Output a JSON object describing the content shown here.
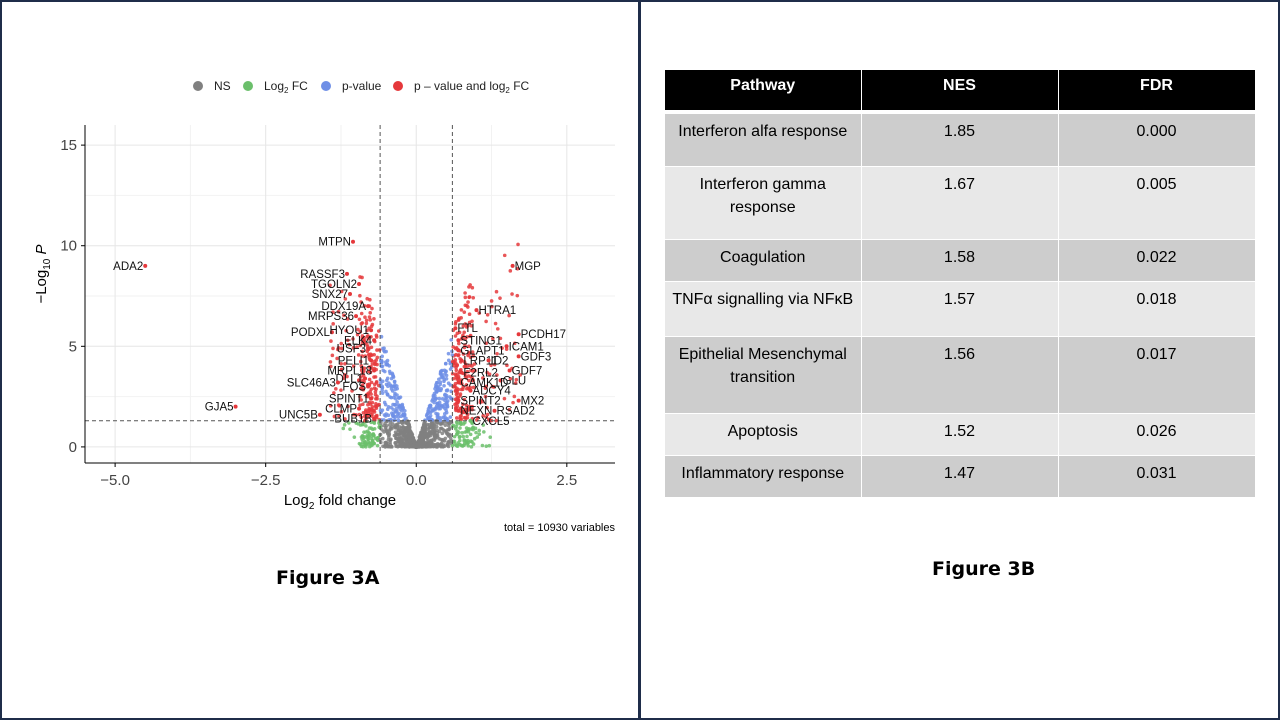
{
  "figure_a": {
    "caption": "Figure 3A",
    "total_text": "total = 10930 variables",
    "legend": [
      {
        "label": "NS",
        "color": "#808080"
      },
      {
        "label": "Log2 FC",
        "color": "#6bbf6b"
      },
      {
        "label": "p-value",
        "color": "#6f8fe6"
      },
      {
        "label": "p – value and log2 FC",
        "color": "#e5383b"
      }
    ]
  },
  "chart_data": {
    "type": "scatter",
    "title": "",
    "xlabel": "Log2 fold change",
    "ylabel": "−Log10 P",
    "xlim": [
      -5.5,
      3.3
    ],
    "ylim": [
      -0.8,
      16
    ],
    "xticks": [
      -5.0,
      -2.5,
      0.0,
      2.5
    ],
    "xtick_labels": [
      "−5.0",
      "−2.5",
      "0.0",
      "2.5"
    ],
    "yticks": [
      0,
      5,
      10,
      15
    ],
    "ytick_labels": [
      "0",
      "5",
      "10",
      "15"
    ],
    "fc_cutoff": 0.6,
    "p_cutoff": 1.3,
    "grid": true,
    "legend_position": "top",
    "labeled_genes": [
      {
        "gene": "ADA2",
        "x": -4.5,
        "y": 9.0
      },
      {
        "gene": "GJA5",
        "x": -3.0,
        "y": 2.0
      },
      {
        "gene": "MTPN",
        "x": -1.05,
        "y": 10.2
      },
      {
        "gene": "RASSF3",
        "x": -1.15,
        "y": 8.6
      },
      {
        "gene": "TGOLN2",
        "x": -0.95,
        "y": 8.1
      },
      {
        "gene": "SNX27",
        "x": -1.1,
        "y": 7.6
      },
      {
        "gene": "DDX19A",
        "x": -0.8,
        "y": 7.0
      },
      {
        "gene": "MRPS36",
        "x": -1.0,
        "y": 6.5
      },
      {
        "gene": "PODXL",
        "x": -1.4,
        "y": 5.7
      },
      {
        "gene": "HYOU1",
        "x": -0.75,
        "y": 5.8
      },
      {
        "gene": "ELK4",
        "x": -0.7,
        "y": 5.3
      },
      {
        "gene": "USF3",
        "x": -0.8,
        "y": 4.9
      },
      {
        "gene": "PELI1",
        "x": -0.75,
        "y": 4.3
      },
      {
        "gene": "MRPL18",
        "x": -0.7,
        "y": 3.8
      },
      {
        "gene": "DLL1",
        "x": -0.85,
        "y": 3.4
      },
      {
        "gene": "SLC46A3",
        "x": -1.3,
        "y": 3.2
      },
      {
        "gene": "FOS",
        "x": -0.8,
        "y": 3.0
      },
      {
        "gene": "SPINT1",
        "x": -0.75,
        "y": 2.4
      },
      {
        "gene": "CLMP",
        "x": -0.95,
        "y": 1.9
      },
      {
        "gene": "UNC5B",
        "x": -1.6,
        "y": 1.6
      },
      {
        "gene": "BUB1B",
        "x": -0.7,
        "y": 1.4
      },
      {
        "gene": "MGP",
        "x": 1.6,
        "y": 9.0
      },
      {
        "gene": "HTRA1",
        "x": 1.0,
        "y": 6.8
      },
      {
        "gene": "FTL",
        "x": 0.65,
        "y": 5.9
      },
      {
        "gene": "PCDH17",
        "x": 1.7,
        "y": 5.6
      },
      {
        "gene": "STING1",
        "x": 0.7,
        "y": 5.3
      },
      {
        "gene": "ICAM1",
        "x": 1.5,
        "y": 5.0
      },
      {
        "gene": "GLAPT1",
        "x": 0.7,
        "y": 4.8
      },
      {
        "gene": "LRP11",
        "x": 0.75,
        "y": 4.3
      },
      {
        "gene": "ID2",
        "x": 1.2,
        "y": 4.3
      },
      {
        "gene": "GDF3",
        "x": 1.7,
        "y": 4.5
      },
      {
        "gene": "GDF7",
        "x": 1.55,
        "y": 3.8
      },
      {
        "gene": "F2RL2",
        "x": 0.75,
        "y": 3.7
      },
      {
        "gene": "GLU",
        "x": 1.4,
        "y": 3.3
      },
      {
        "gene": "CAMK1D",
        "x": 0.7,
        "y": 3.2
      },
      {
        "gene": "ADCY4",
        "x": 0.9,
        "y": 2.8
      },
      {
        "gene": "SPINT2",
        "x": 0.7,
        "y": 2.3
      },
      {
        "gene": "MX2",
        "x": 1.7,
        "y": 2.3
      },
      {
        "gene": "NEXN",
        "x": 0.7,
        "y": 1.8
      },
      {
        "gene": "RSAD2",
        "x": 1.3,
        "y": 1.8
      },
      {
        "gene": "CXCL5",
        "x": 0.9,
        "y": 1.3
      }
    ]
  },
  "figure_b": {
    "caption": "Figure 3B",
    "headers": [
      "Pathway",
      "NES",
      "FDR"
    ],
    "rows": [
      {
        "pathway": "Interferon alfa response",
        "nes": "1.85",
        "fdr": "0.000"
      },
      {
        "pathway": "Interferon gamma response",
        "nes": "1.67",
        "fdr": "0.005"
      },
      {
        "pathway": "Coagulation",
        "nes": "1.58",
        "fdr": "0.022"
      },
      {
        "pathway": "TNFα signalling via NFκB",
        "nes": "1.57",
        "fdr": "0.018"
      },
      {
        "pathway": "Epithelial Mesenchymal transition",
        "nes": "1.56",
        "fdr": "0.017"
      },
      {
        "pathway": "Apoptosis",
        "nes": "1.52",
        "fdr": "0.026"
      },
      {
        "pathway": "Inflammatory response",
        "nes": "1.47",
        "fdr": "0.031"
      }
    ]
  }
}
